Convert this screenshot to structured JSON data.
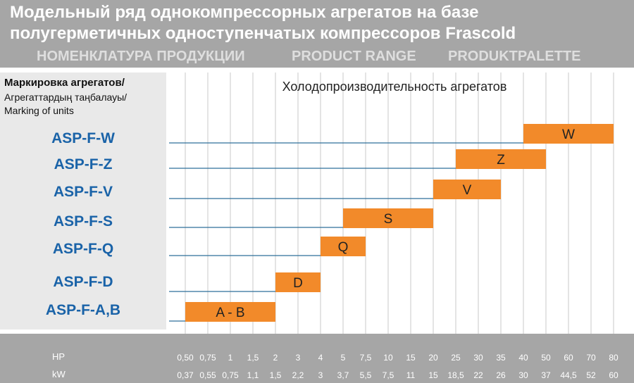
{
  "header": {
    "title_line1": "Модельный ряд однокомпрессорных агрегатов на базе",
    "title_line2": "полугерметичных одноступенчатых  компрессоров Frascold",
    "sub_ru": "НОМЕНКЛАТУРА ПРОДУКЦИИ",
    "sub_en": "PRODUCT RANGE",
    "sub_de": "PRODUKTPALETTE"
  },
  "left_panel": {
    "label_ru": "Маркировка агрегатов/",
    "label_kz": "Агрегаттардың таңбалауы/",
    "label_en": "Marking of units"
  },
  "colors": {
    "bar": "#f28a2a",
    "line": "#2f6f9a",
    "grid": "#c8c8c8",
    "header_bg": "#a6a6a6",
    "unit_text": "#1a63a8"
  },
  "chart_data": {
    "type": "bar",
    "orientation": "horizontal",
    "title": "Холодопроизводительность агрегатов",
    "x_axis_hp": [
      "0,50",
      "0,75",
      "1",
      "1,5",
      "2",
      "3",
      "4",
      "5",
      "7,5",
      "10",
      "15",
      "20",
      "25",
      "30",
      "35",
      "40",
      "50",
      "60",
      "70",
      "80"
    ],
    "x_axis_kw": [
      "0,37",
      "0,55",
      "0,75",
      "1,1",
      "1,5",
      "2,2",
      "3",
      "3,7",
      "5,5",
      "7,5",
      "11",
      "15",
      "18,5",
      "22",
      "26",
      "30",
      "37",
      "44,5",
      "52",
      "60"
    ],
    "x_axis_title_hp": "HP",
    "x_axis_title_kw": "kW",
    "series": [
      {
        "unit": "ASP-F-W",
        "label": "W",
        "from_hp": "40",
        "to_hp": "80"
      },
      {
        "unit": "ASP-F-Z",
        "label": "Z",
        "from_hp": "25",
        "to_hp": "50"
      },
      {
        "unit": "ASP-F-V",
        "label": "V",
        "from_hp": "20",
        "to_hp": "35"
      },
      {
        "unit": "ASP-F-S",
        "label": "S",
        "from_hp": "5",
        "to_hp": "20"
      },
      {
        "unit": "ASP-F-Q",
        "label": "Q",
        "from_hp": "4",
        "to_hp": "7,5"
      },
      {
        "unit": "ASP-F-D",
        "label": "D",
        "from_hp": "2",
        "to_hp": "4"
      },
      {
        "unit": "ASP-F-A,B",
        "label": "A - B",
        "from_hp": "0,50",
        "to_hp": "2"
      }
    ],
    "grid": true
  }
}
